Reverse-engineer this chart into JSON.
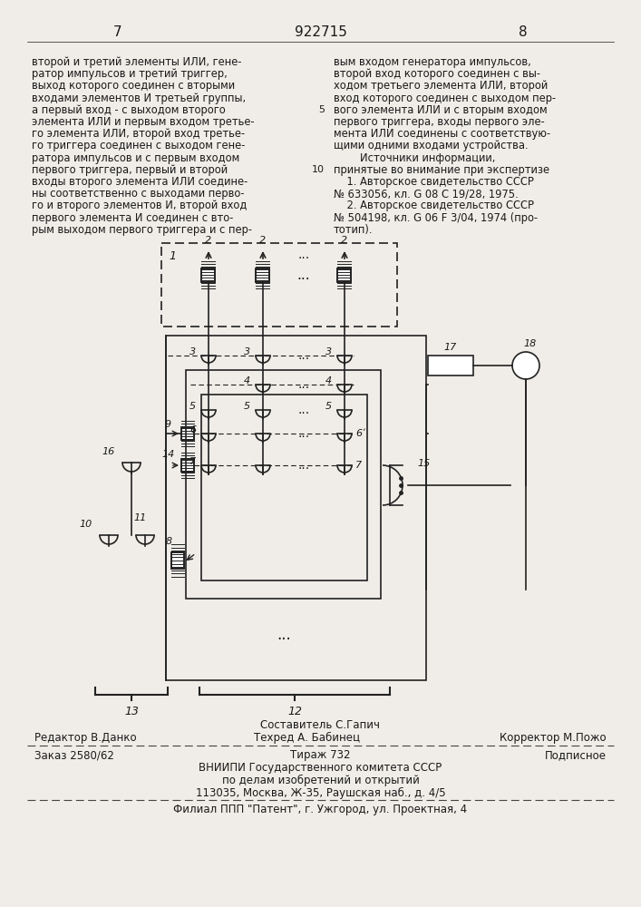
{
  "page_number_left": "7",
  "patent_number": "922715",
  "page_number_right": "8",
  "bg_color": "#f0ede8",
  "text_color": "#1a1a1a",
  "left_column_text": [
    "второй и третий элементы ИЛИ, гене-",
    "ратор импульсов и третий триггер,",
    "выход которого соединен с вторыми",
    "входами элементов И третьей группы,",
    "а первый вход - с выходом второго",
    "элемента ИЛИ и первым входом третье-",
    "го элемента ИЛИ, второй вход третье-",
    "го триггера соединен с выходом гене-",
    "ратора импульсов и с первым входом",
    "первого триггера, первый и второй",
    "входы второго элемента ИЛИ соедине-",
    "ны соответственно с выходами перво-",
    "го и второго элементов И, второй вход",
    "первого элемента И соединен с вто-",
    "рым выходом первого триггера и с пер-"
  ],
  "right_column_text": [
    "вым входом генератора импульсов,",
    "второй вход которого соединен с вы-",
    "ходом третьего элемента ИЛИ, второй",
    "вход которого соединен с выходом пер-",
    "вого элемента ИЛИ и с вторым входом",
    "первого триггера, входы первого эле-",
    "мента ИЛИ соединены с соответствую-",
    "щими одними входами устройства.",
    "        Источники информации,",
    "принятые во внимание при экспертизе",
    "    1. Авторское свидетельство СССР",
    "№ 633056, кл. G 08 С 19/28, 1975.",
    "    2. Авторское свидетельство СССР",
    "№ 504198, кл. G 06 F 3/04, 1974 (про-",
    "тотип)."
  ],
  "footer_composer": "Составитель С.Гапич",
  "footer_editor": "Редактор В.Данко",
  "footer_tech": "Техред А. Бабинец",
  "footer_corrector": "Корректор М.Пожо",
  "footer_order": "Заказ 2580/62",
  "footer_tirazh": "Тираж 732",
  "footer_podpisnoe": "Подписное",
  "footer_org": "ВНИИПИ Государственного комитета СССР",
  "footer_dept": "по делам изобретений и открытий",
  "footer_addr": "113035, Москва, Ж-35, Раушская наб., д. 4/5",
  "footer_branch": "Филиал ППП \"Патент\", г. Ужгород, ул. Проектная, 4"
}
